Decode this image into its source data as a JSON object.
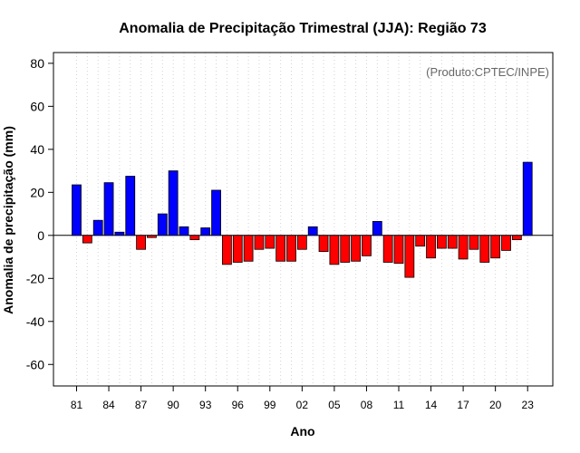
{
  "chart_data": {
    "type": "bar",
    "title": "Anomalia de Precipitação Trimestral (JJA): Região 73",
    "xlabel": "Ano",
    "ylabel": "Anomalia de precipitação (mm)",
    "annotation": "(Produto:CPTEC/INPE)",
    "ylim": [
      -70,
      85
    ],
    "y_ticks": [
      -60,
      -40,
      -20,
      0,
      20,
      40,
      60,
      80
    ],
    "y_tick_labels": [
      "-60",
      "-40",
      "-20",
      "0",
      "20",
      "40",
      "60",
      "80"
    ],
    "x_tick_labels": [
      "81",
      "84",
      "87",
      "90",
      "93",
      "96",
      "99",
      "02",
      "05",
      "08",
      "11",
      "14",
      "17",
      "20",
      "23"
    ],
    "categories": [
      "1981",
      "1982",
      "1983",
      "1984",
      "1985",
      "1986",
      "1987",
      "1988",
      "1989",
      "1990",
      "1991",
      "1992",
      "1993",
      "1994",
      "1995",
      "1996",
      "1997",
      "1998",
      "1999",
      "2000",
      "2001",
      "2002",
      "2003",
      "2004",
      "2005",
      "2006",
      "2007",
      "2008",
      "2009",
      "2010",
      "2011",
      "2012",
      "2013",
      "2014",
      "2015",
      "2016",
      "2017",
      "2018",
      "2019",
      "2020",
      "2021",
      "2022",
      "2023"
    ],
    "values": [
      23.5,
      -3.5,
      7,
      24.5,
      1.5,
      27.5,
      -6.5,
      -1,
      10,
      30,
      4,
      -2,
      3.5,
      21,
      -13.5,
      -12.5,
      -12,
      -6.5,
      -6,
      -12,
      -12,
      -6.5,
      4,
      -7.5,
      -13.5,
      -12.5,
      -12,
      -9.5,
      6.5,
      -12.5,
      -13,
      -19.5,
      -5,
      -10.5,
      -6,
      -6,
      -11,
      -6.5,
      -12.5,
      -10.5,
      -7,
      -2,
      34
    ],
    "positive_color": "#0000ff",
    "negative_color": "#ff0000",
    "grid": "vertical dotted"
  }
}
